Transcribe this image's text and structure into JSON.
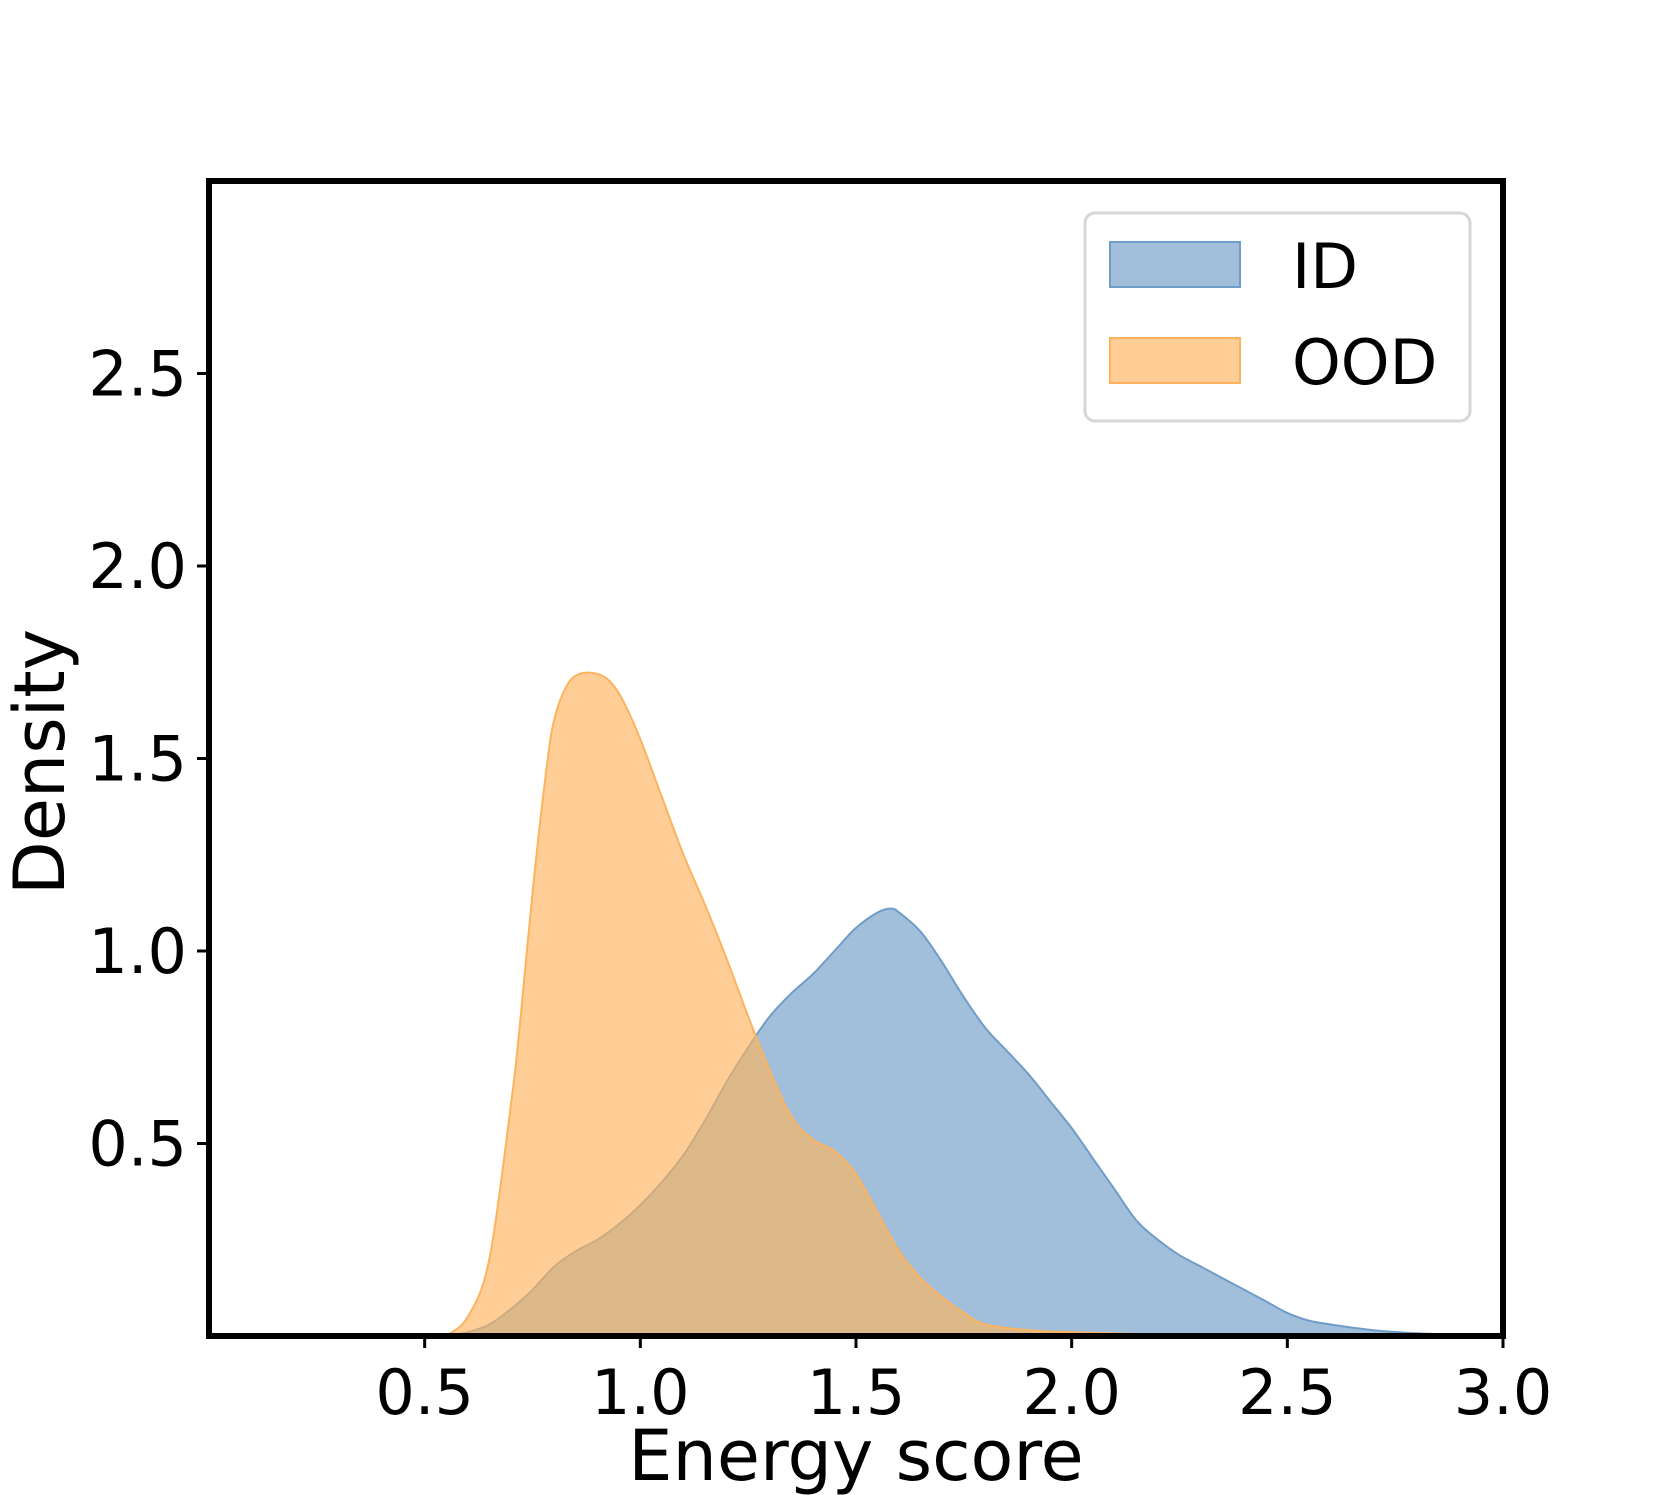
{
  "chart_data": {
    "type": "area",
    "title": "",
    "xlabel": "Energy score",
    "ylabel": "Density",
    "xlim": [
      0.0,
      3.0
    ],
    "ylim": [
      0.0,
      3.0
    ],
    "xticks": [
      0.5,
      1.0,
      1.5,
      2.0,
      2.5,
      3.0
    ],
    "xtick_labels": [
      "0.5",
      "1.0",
      "1.5",
      "2.0",
      "2.5",
      "3.0"
    ],
    "yticks": [
      0.5,
      1.0,
      1.5,
      2.0,
      2.5
    ],
    "ytick_labels": [
      "0.5",
      "1.0",
      "1.5",
      "2.0",
      "2.5"
    ],
    "grid": false,
    "legend_position": "top-right",
    "series": [
      {
        "name": "ID",
        "color": "#6f9cc8",
        "x": [
          0.55,
          0.6,
          0.65,
          0.7,
          0.75,
          0.8,
          0.85,
          0.9,
          0.95,
          1.0,
          1.05,
          1.1,
          1.15,
          1.2,
          1.25,
          1.3,
          1.35,
          1.4,
          1.45,
          1.5,
          1.55,
          1.58,
          1.6,
          1.65,
          1.7,
          1.75,
          1.8,
          1.85,
          1.9,
          1.95,
          2.0,
          2.05,
          2.1,
          2.15,
          2.2,
          2.25,
          2.3,
          2.35,
          2.4,
          2.45,
          2.5,
          2.55,
          2.6,
          2.7,
          2.8,
          2.9,
          3.0
        ],
        "y": [
          0.0,
          0.01,
          0.03,
          0.07,
          0.12,
          0.18,
          0.22,
          0.25,
          0.29,
          0.34,
          0.4,
          0.47,
          0.56,
          0.66,
          0.75,
          0.83,
          0.89,
          0.94,
          1.0,
          1.06,
          1.1,
          1.11,
          1.1,
          1.05,
          0.97,
          0.88,
          0.8,
          0.74,
          0.68,
          0.61,
          0.54,
          0.46,
          0.38,
          0.3,
          0.25,
          0.21,
          0.18,
          0.15,
          0.12,
          0.09,
          0.06,
          0.04,
          0.03,
          0.015,
          0.007,
          0.003,
          0.0
        ]
      },
      {
        "name": "OOD",
        "color": "#fdb35e",
        "x": [
          0.55,
          0.6,
          0.65,
          0.7,
          0.72,
          0.75,
          0.78,
          0.8,
          0.83,
          0.86,
          0.9,
          0.93,
          0.96,
          1.0,
          1.05,
          1.1,
          1.15,
          1.2,
          1.25,
          1.3,
          1.35,
          1.4,
          1.45,
          1.5,
          1.55,
          1.6,
          1.65,
          1.7,
          1.75,
          1.8,
          1.9,
          2.0,
          2.2,
          2.4
        ],
        "y": [
          0.0,
          0.05,
          0.2,
          0.6,
          0.8,
          1.15,
          1.45,
          1.6,
          1.69,
          1.72,
          1.72,
          1.7,
          1.65,
          1.55,
          1.4,
          1.25,
          1.12,
          0.98,
          0.83,
          0.69,
          0.57,
          0.51,
          0.48,
          0.42,
          0.32,
          0.22,
          0.15,
          0.1,
          0.06,
          0.03,
          0.015,
          0.01,
          0.004,
          0.0
        ]
      }
    ]
  }
}
